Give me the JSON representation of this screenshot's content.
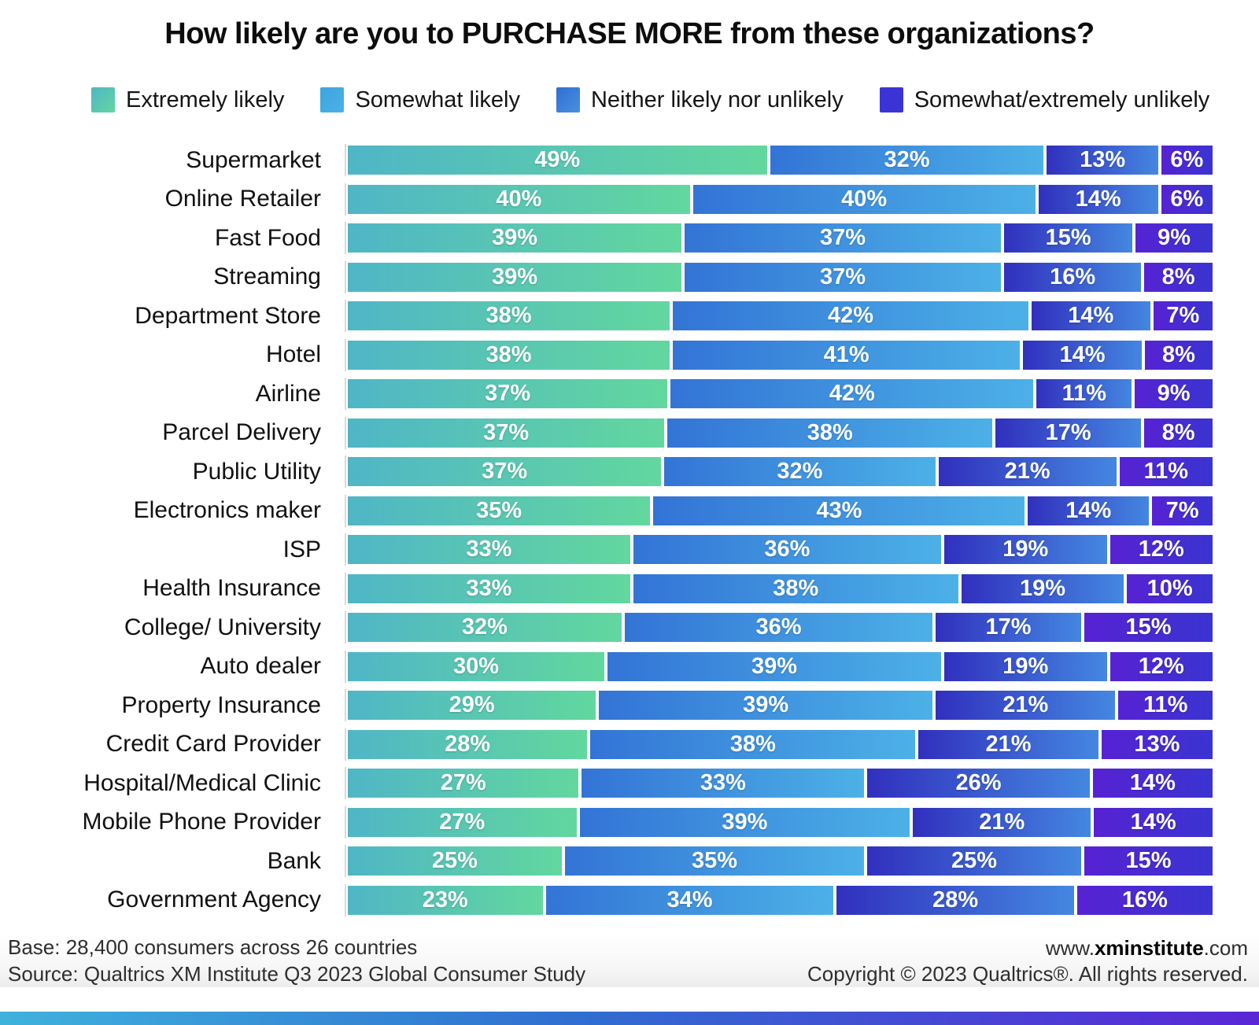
{
  "title": "How likely are you to PURCHASE MORE from these organizations?",
  "legend": {
    "items": [
      {
        "label": "Extremely likely",
        "color_from": "#4FB6C6",
        "color_to": "#62D79E"
      },
      {
        "label": "Somewhat likely",
        "color_from": "#3CA4DF",
        "color_to": "#4CB1E7"
      },
      {
        "label": "Neither likely nor unlikely",
        "color_from": "#2F6FD4",
        "color_to": "#4A8FE0"
      },
      {
        "label": "Somewhat/extremely unlikely",
        "color_from": "#3B33D6",
        "color_to": "#3B33D6"
      }
    ]
  },
  "chart_data": {
    "type": "bar",
    "orientation": "horizontal-stacked",
    "unit": "%",
    "title": "How likely are you to PURCHASE MORE from these organizations?",
    "xlim": [
      0,
      100
    ],
    "grid": false,
    "legend_position": "top",
    "categories": [
      "Supermarket",
      "Online Retailer",
      "Fast Food",
      "Streaming",
      "Department Store",
      "Hotel",
      "Airline",
      "Parcel Delivery",
      "Public Utility",
      "Electronics maker",
      "ISP",
      "Health Insurance",
      "College/ University",
      "Auto dealer",
      "Property Insurance",
      "Credit Card Provider",
      "Hospital/Medical Clinic",
      "Mobile Phone Provider",
      "Bank",
      "Government Agency"
    ],
    "series": [
      {
        "name": "Extremely likely",
        "color_from": "#4FB6C6",
        "color_to": "#62D79E",
        "values": [
          49,
          40,
          39,
          39,
          38,
          38,
          37,
          37,
          37,
          35,
          33,
          33,
          32,
          30,
          29,
          28,
          27,
          27,
          25,
          23
        ]
      },
      {
        "name": "Somewhat likely",
        "color_from": "#3374D6",
        "color_to": "#4CB1E7",
        "values": [
          32,
          40,
          37,
          37,
          42,
          41,
          42,
          38,
          32,
          43,
          36,
          38,
          36,
          39,
          39,
          38,
          33,
          39,
          35,
          34
        ]
      },
      {
        "name": "Neither likely nor unlikely",
        "color_from": "#3130BE",
        "color_to": "#4487E0",
        "values": [
          13,
          14,
          15,
          16,
          14,
          14,
          11,
          17,
          21,
          14,
          19,
          19,
          17,
          19,
          21,
          21,
          26,
          21,
          25,
          28
        ]
      },
      {
        "name": "Somewhat/extremely unlikely",
        "color_from": "#5722D3",
        "color_to": "#3A34D1",
        "values": [
          6,
          6,
          9,
          8,
          7,
          8,
          9,
          8,
          11,
          7,
          12,
          10,
          15,
          12,
          11,
          13,
          14,
          14,
          15,
          16
        ]
      }
    ]
  },
  "footer": {
    "base": "Base: 28,400 consumers across 26 countries",
    "source": "Source: Qualtrics XM Institute Q3 2023 Global Consumer Study",
    "site_prefix": "www.",
    "site_name": "xminstitute",
    "site_suffix": ".com",
    "copyright": "Copyright © 2023 Qualtrics®. All rights reserved."
  }
}
